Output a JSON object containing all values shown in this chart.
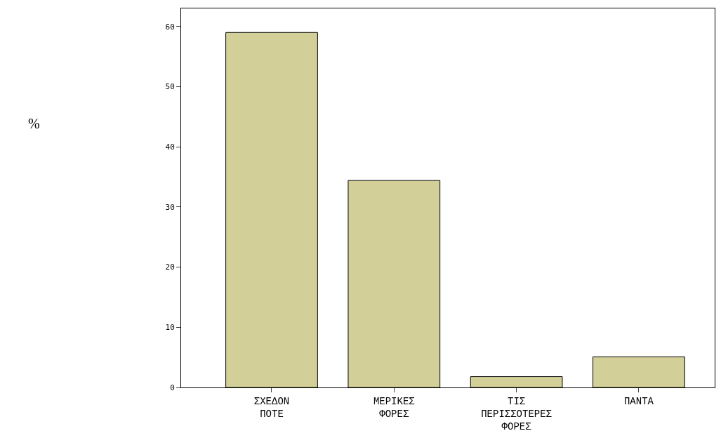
{
  "chart_data": {
    "type": "bar",
    "annotations": [
      "%"
    ],
    "categories": [
      "ΣΧΕΔΟΝ ΠΟΤΕ",
      "ΜΕΡΙΚΕΣ ΦΟΡΕΣ",
      "ΤΙΣ ΠΕΡΙΣΣΟΤΕΡΕΣ ΦΟΡΕΣ",
      "ΠΑΝΤΑ"
    ],
    "values": [
      59,
      34.4,
      1.8,
      5.1
    ],
    "color": "#d3cf98",
    "ylim": [
      0,
      63
    ],
    "yticks": [
      0,
      10,
      20,
      30,
      40,
      50,
      60
    ]
  }
}
